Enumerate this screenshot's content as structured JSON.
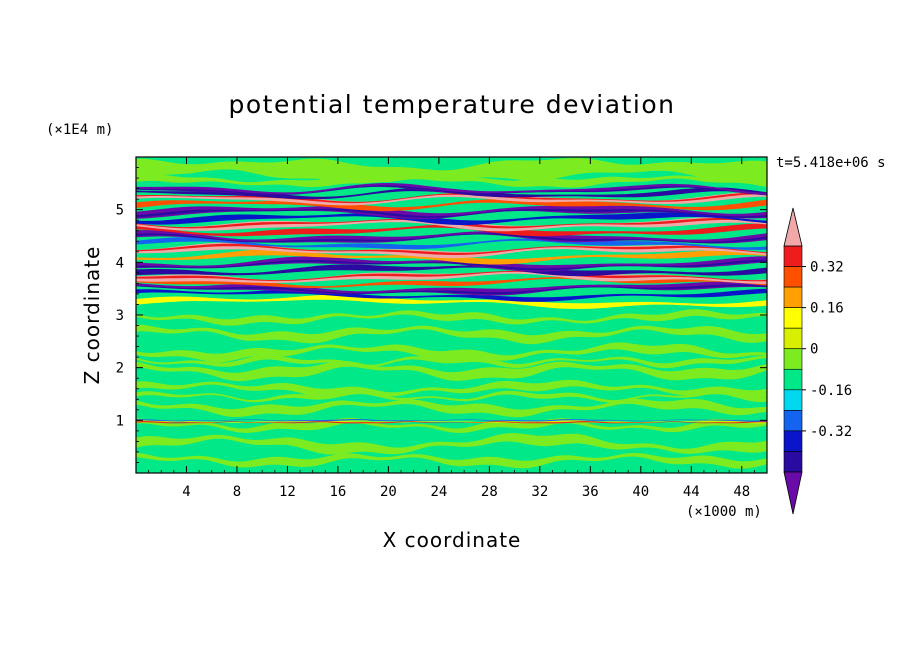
{
  "chart_data": {
    "type": "heatmap",
    "title": "potential temperature deviation",
    "xlabel": "X coordinate",
    "ylabel": "Z coordinate",
    "x_unit": "(×1000 m)",
    "y_unit": "(×1E4 m)",
    "time_label": "t=5.418e+06 s",
    "xlim": [
      0,
      50
    ],
    "ylim": [
      0,
      6
    ],
    "x_ticks": [
      "4",
      "8",
      "12",
      "16",
      "20",
      "24",
      "28",
      "32",
      "36",
      "40",
      "44",
      "48"
    ],
    "y_ticks": [
      "1",
      "2",
      "3",
      "4",
      "5"
    ],
    "colorbar": {
      "levels": [
        -0.48,
        -0.4,
        -0.32,
        -0.24,
        -0.16,
        -0.08,
        0,
        0.08,
        0.16,
        0.24,
        0.32,
        0.4,
        0.48
      ],
      "colors": [
        "#6a0aa8",
        "#2a0aa0",
        "#0a14c8",
        "#1464f0",
        "#00d8f0",
        "#00e888",
        "#7cec20",
        "#d8f000",
        "#ffff00",
        "#ffa000",
        "#ff5000",
        "#ee1c1c",
        "#f0a8a8"
      ],
      "tick_labels": [
        "0.32",
        "0.16",
        "0",
        "-0.16",
        "-0.32"
      ],
      "extend": "both"
    },
    "description_bands": [
      {
        "z_range": [
          0,
          3.1
        ],
        "dominant": "near zero (green)"
      },
      {
        "z_range": [
          3.1,
          5.4
        ],
        "dominant": "alternating strong positive/negative layers"
      },
      {
        "z_range": [
          5.4,
          6
        ],
        "dominant": "near zero (green)"
      }
    ]
  }
}
